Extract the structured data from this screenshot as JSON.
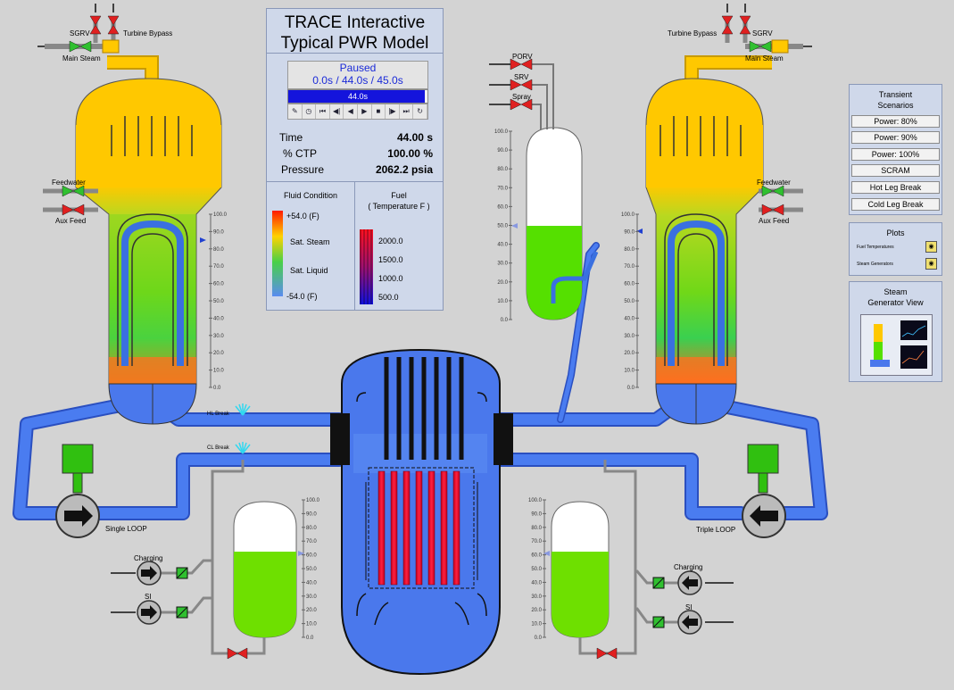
{
  "control_panel": {
    "title_line1": "TRACE Interactive",
    "title_line2": "Typical PWR Model",
    "status": "Paused",
    "times": "0.0s / 44.0s / 45.0s",
    "progress_label": "44.0s",
    "progress_fraction": 0.9778,
    "transport_icons": [
      "settings-icon",
      "clock-icon",
      "first-icon",
      "step-back-icon",
      "rewind-icon",
      "play-icon",
      "stop-icon",
      "forward-icon",
      "last-icon",
      "refresh-icon"
    ],
    "readouts": [
      {
        "label": "Time",
        "value": "44.00 s"
      },
      {
        "label": "% CTP",
        "value": "100.00 %"
      },
      {
        "label": "Pressure",
        "value": "2062.2 psia"
      }
    ],
    "fluid_legend": {
      "title": "Fluid Condition",
      "labels": [
        "+54.0 (F)",
        "Sat. Steam",
        "Sat. Liquid",
        "-54.0 (F)"
      ]
    },
    "fuel_legend": {
      "title_line1": "Fuel",
      "title_line2": "( Temperature F )",
      "labels": [
        "2000.0",
        "1500.0",
        "1000.0",
        "500.0"
      ]
    }
  },
  "transient_panel": {
    "title_line1": "Transient",
    "title_line2": "Scenarios",
    "buttons": [
      "Power: 80%",
      "Power: 90%",
      "Power: 100%",
      "SCRAM",
      "Hot Leg Break",
      "Cold Leg Break"
    ]
  },
  "plots_panel": {
    "title": "Plots",
    "items": [
      "Fuel Temperatures",
      "Steam Generators"
    ]
  },
  "sg_view_panel": {
    "title_line1": "Steam",
    "title_line2": "Generator View"
  },
  "diagram_labels": {
    "sgrv": "SGRV",
    "turbine_bypass": "Turbine Bypass",
    "main_steam": "Main Steam",
    "feedwater": "Feedwater",
    "aux_feed": "Aux Feed",
    "porv": "PORV",
    "srv": "SRV",
    "spray": "Spray",
    "hl_break": "HL Break",
    "cl_break": "CL Break",
    "single_loop": "Single LOOP",
    "triple_loop": "Triple LOOP",
    "charging": "Charging",
    "si": "SI"
  },
  "levels": {
    "pressurizer_percent": 50,
    "left_sg_percent": 85,
    "right_sg_percent": 90,
    "left_accumulator_percent": 60,
    "right_accumulator_percent": 60
  },
  "gauge_ticks": [
    "100.0",
    "90.0",
    "80.0",
    "70.0",
    "60.0",
    "50.0",
    "40.0",
    "30.0",
    "20.0",
    "10.0",
    "0.0"
  ],
  "colors": {
    "steam": "#ffc800",
    "liquid": "#55e000",
    "pipe": "#3c6ee6",
    "fuel_hot": "#e01030",
    "valve_red": "#e02020",
    "valve_green": "#30c030"
  }
}
